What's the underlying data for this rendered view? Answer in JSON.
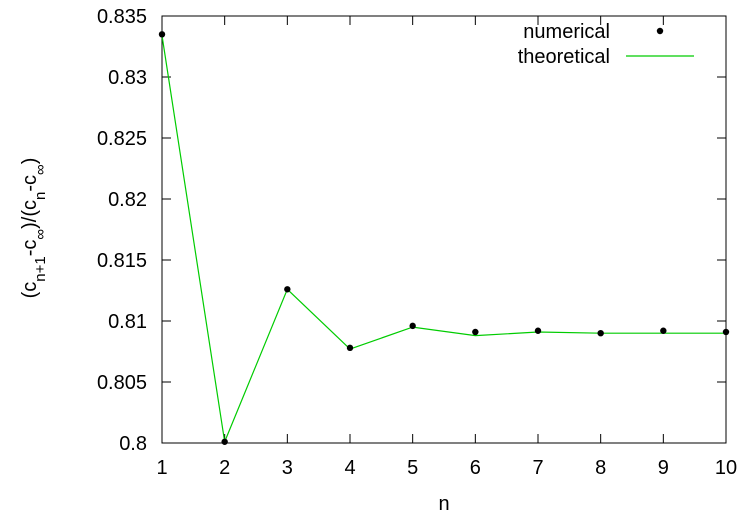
{
  "chart_data": {
    "type": "scatter",
    "title": "",
    "xlabel": "n",
    "ylabel": {
      "parts": [
        {
          "t": "(c",
          "sub": false
        },
        {
          "t": "n+1",
          "sub": true
        },
        {
          "t": "-c",
          "sub": false
        },
        {
          "t": "∞",
          "sub": true
        },
        {
          "t": ")/(c",
          "sub": false
        },
        {
          "t": "n",
          "sub": true
        },
        {
          "t": "-c",
          "sub": false
        },
        {
          "t": "∞",
          "sub": true
        },
        {
          "t": ")",
          "sub": false
        }
      ]
    },
    "xlim": [
      1,
      10
    ],
    "ylim": [
      0.8,
      0.835
    ],
    "xticks": [
      "1",
      "2",
      "3",
      "4",
      "5",
      "6",
      "7",
      "8",
      "9",
      "10"
    ],
    "yticks": [
      "0.8",
      "0.805",
      "0.81",
      "0.815",
      "0.82",
      "0.825",
      "0.83",
      "0.835"
    ],
    "grid": false,
    "legend_position": "top-right",
    "series": [
      {
        "name": "numerical",
        "style": "points",
        "color": "#000000",
        "x": [
          1,
          2,
          3,
          4,
          5,
          6,
          7,
          8,
          9,
          10
        ],
        "y": [
          0.8335,
          0.8001,
          0.8126,
          0.8078,
          0.8096,
          0.8091,
          0.8092,
          0.809,
          0.8092,
          0.8091
        ]
      },
      {
        "name": "theoretical",
        "style": "line",
        "color": "#00cc00",
        "x": [
          1,
          2,
          3,
          4,
          5,
          6,
          7,
          8,
          9,
          10
        ],
        "y": [
          0.8334,
          0.8001,
          0.8126,
          0.8077,
          0.8095,
          0.8088,
          0.8091,
          0.809,
          0.809,
          0.809
        ]
      }
    ]
  }
}
